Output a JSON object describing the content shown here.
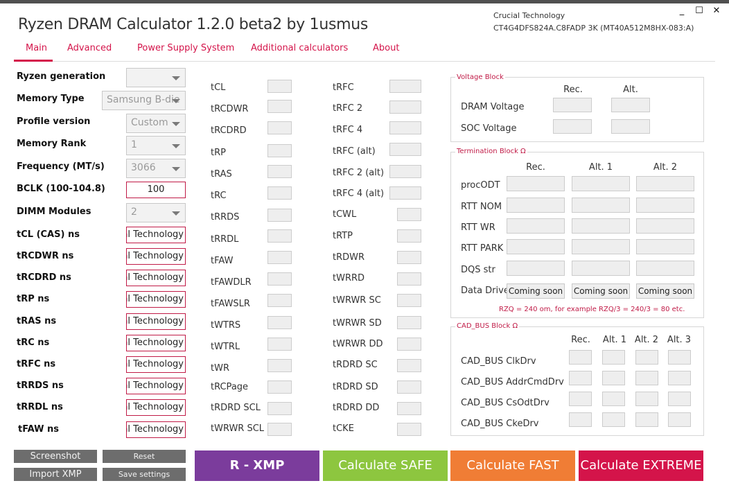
{
  "app": {
    "title": "Ryzen DRAM Calculator 1.2.0 beta2 by 1usmus",
    "device_vendor": "Crucial Technology",
    "device_part": "CT4G4DFS824A.C8FADP 3K (MT40A512M8HX-083:A)"
  },
  "window": {
    "minimize": "_",
    "maximize": "☐",
    "close": "✕"
  },
  "tabs": [
    "Main",
    "Advanced",
    "Power Supply System",
    "Additional calculators",
    "About"
  ],
  "settings": {
    "ryzen_generation": {
      "label": "Ryzen generation",
      "value": ""
    },
    "memory_type": {
      "label": "Memory Type",
      "value": "Samsung B-die"
    },
    "profile_version": {
      "label": "Profile version",
      "value": "Custom"
    },
    "memory_rank": {
      "label": "Memory Rank",
      "value": "1"
    },
    "frequency": {
      "label": "Frequency (MT/s)",
      "value": "3066"
    },
    "bclk": {
      "label": "BCLK (100-104.8)",
      "value": "100"
    },
    "dimm_modules": {
      "label": "DIMM Modules",
      "value": "2"
    }
  },
  "ns_fields": [
    {
      "label": "tCL (CAS) ns",
      "value": "Crucial Technology"
    },
    {
      "label": "tRCDWR ns",
      "value": "Crucial Technology"
    },
    {
      "label": "tRCDRD ns",
      "value": "Crucial Technology"
    },
    {
      "label": "tRP ns",
      "value": "Crucial Technology"
    },
    {
      "label": "tRAS ns",
      "value": "Crucial Technology"
    },
    {
      "label": "tRC ns",
      "value": "Crucial Technology"
    },
    {
      "label": "tRFC ns",
      "value": "Crucial Technology"
    },
    {
      "label": "tRRDS ns",
      "value": "Crucial Technology"
    },
    {
      "label": "tRRDL ns",
      "value": "Crucial Technology"
    },
    {
      "label": "tFAW ns",
      "value": "Crucial Technology"
    }
  ],
  "timings_col1": [
    "tCL",
    "tRCDWR",
    "tRCDRD",
    "tRP",
    "tRAS",
    "tRC",
    "tRRDS",
    "tRRDL",
    "tFAW",
    "tFAWDLR",
    "tFAWSLR",
    "tWTRS",
    "tWTRL",
    "tWR",
    "tRCPage",
    "tRDRD SCL",
    "tWRWR SCL"
  ],
  "timings_col2": [
    "tRFC",
    "tRFC 2",
    "tRFC 4",
    "tRFC (alt)",
    "tRFC 2 (alt)",
    "tRFC 4 (alt)",
    "tCWL",
    "tRTP",
    "tRDWR",
    "tWRRD",
    "tWRWR SC",
    "tWRWR SD",
    "tWRWR DD",
    "tRDRD SC",
    "tRDRD SD",
    "tRDRD DD",
    "tCKE"
  ],
  "voltage_block": {
    "title": "Voltage Block",
    "headers": [
      "Rec.",
      "Alt."
    ],
    "rows": [
      "DRAM Voltage",
      "SOC Voltage"
    ]
  },
  "termination_block": {
    "title": "Termination Block Ω",
    "headers": [
      "Rec.",
      "Alt. 1",
      "Alt. 2"
    ],
    "rows": [
      "procODT",
      "RTT NOM",
      "RTT WR",
      "RTT PARK",
      "DQS str"
    ],
    "data_drive_label": "Data Drive",
    "coming_soon": "Coming soon",
    "note": "RZQ = 240 om, for example RZQ/3 = 240/3 = 80 etc."
  },
  "cad_block": {
    "title": "CAD_BUS Block Ω",
    "headers": [
      "Rec.",
      "Alt. 1",
      "Alt. 2",
      "Alt. 3"
    ],
    "rows": [
      "CAD_BUS ClkDrv",
      "CAD_BUS AddrCmdDrv",
      "CAD_BUS CsOdtDrv",
      "CAD_BUS CkeDrv"
    ]
  },
  "buttons": {
    "screenshot": "Screenshot",
    "reset": "Reset",
    "import_xmp": "Import XMP",
    "save_settings": "Save settings",
    "rxmp": "R - XMP",
    "safe": "Calculate SAFE",
    "fast": "Calculate FAST",
    "extreme": "Calculate EXTREME"
  },
  "colors": {
    "accent": "#d4144a",
    "rxmp": "#7b3c9c",
    "safe": "#8dc63f",
    "fast": "#f07d35",
    "extreme": "#d4144a"
  }
}
